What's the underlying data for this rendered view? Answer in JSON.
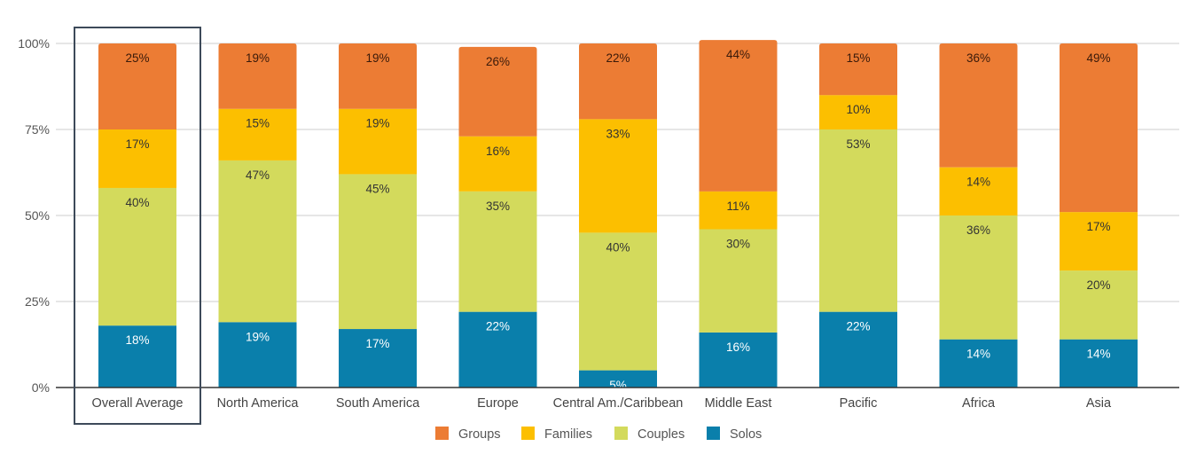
{
  "chart_data": {
    "type": "bar",
    "stacked": true,
    "percent": true,
    "title": "",
    "xlabel": "",
    "ylabel": "",
    "ylim": [
      0,
      100
    ],
    "yticks": [
      0,
      25,
      50,
      75,
      100
    ],
    "ytick_labels": [
      "0%",
      "25%",
      "50%",
      "75%",
      "100%"
    ],
    "grid": true,
    "legend_position": "bottom",
    "highlighted_category": "Overall Average",
    "categories": [
      "Overall Average",
      "North America",
      "South America",
      "Europe",
      "Central Am./Caribbean",
      "Middle East",
      "Pacific",
      "Africa",
      "Asia"
    ],
    "series": [
      {
        "name": "Solos",
        "color": "#0a7fab",
        "label_color": "#ffffff",
        "values": [
          18,
          19,
          17,
          22,
          5,
          16,
          22,
          14,
          14
        ]
      },
      {
        "name": "Couples",
        "color": "#d3da5c",
        "label_color": "#333333",
        "values": [
          40,
          47,
          45,
          35,
          40,
          30,
          53,
          36,
          20
        ]
      },
      {
        "name": "Families",
        "color": "#fcbf00",
        "label_color": "#333333",
        "values": [
          17,
          15,
          19,
          16,
          33,
          11,
          10,
          14,
          17
        ]
      },
      {
        "name": "Groups",
        "color": "#ec7c34",
        "label_color": "#3a1a0a",
        "values": [
          25,
          19,
          19,
          26,
          22,
          44,
          15,
          36,
          49
        ]
      }
    ],
    "legend_order": [
      "Groups",
      "Families",
      "Couples",
      "Solos"
    ]
  }
}
